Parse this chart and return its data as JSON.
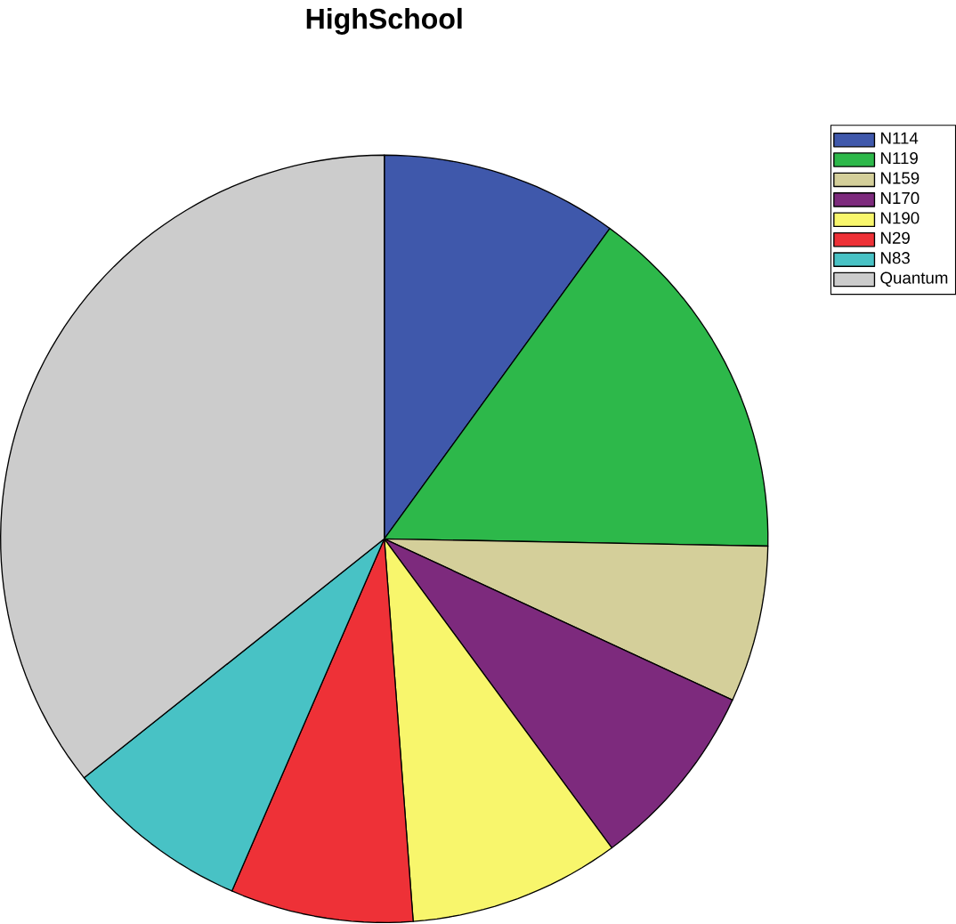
{
  "chart_data": {
    "type": "pie",
    "title": "HighSchool",
    "categories": [
      "N114",
      "N119",
      "N159",
      "N170",
      "N190",
      "N29",
      "N83",
      "Quantum"
    ],
    "values": [
      10.0,
      15.3,
      6.6,
      8.0,
      8.9,
      7.7,
      7.8,
      35.7
    ],
    "colors": [
      "#3f58ab",
      "#2db84a",
      "#d4cf9a",
      "#7d2a7d",
      "#f8f66c",
      "#ee3137",
      "#48c2c5",
      "#cccccc"
    ],
    "legend": "top right"
  }
}
